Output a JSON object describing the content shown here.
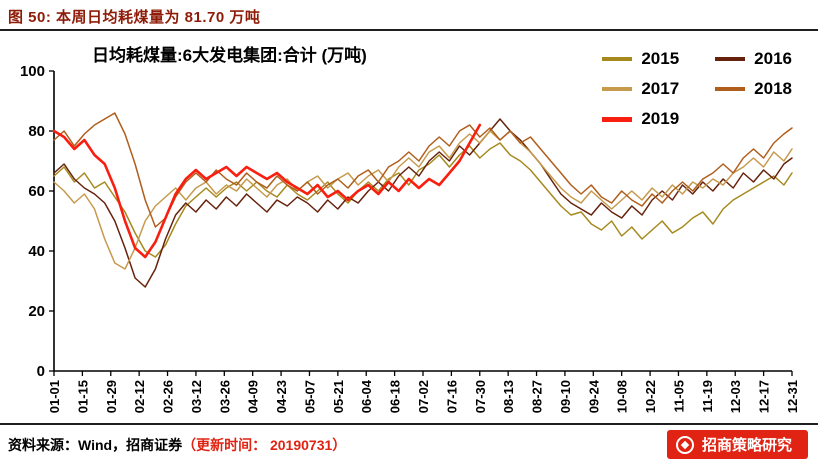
{
  "header": {
    "title": "图 50:  本周日均耗煤量为 81.70 万吨"
  },
  "footer": {
    "source_label": "资料来源：Wind，招商证券",
    "update_label": "（更新时间： 20190731）",
    "stamp_text": "招商策略研究"
  },
  "chart_data": {
    "type": "line",
    "title": "日均耗煤量:6大发电集团:合计 (万吨)",
    "xlabel": "",
    "ylabel": "",
    "ylim": [
      0,
      100
    ],
    "yticks": [
      0,
      20,
      40,
      60,
      80,
      100
    ],
    "grid": false,
    "legend_position": "top-right",
    "x_tick_labels": [
      "01-01",
      "01-15",
      "01-29",
      "02-12",
      "02-26",
      "03-12",
      "03-26",
      "04-09",
      "04-23",
      "05-07",
      "05-21",
      "06-04",
      "06-18",
      "07-02",
      "07-16",
      "07-30",
      "08-13",
      "08-27",
      "09-10",
      "09-24",
      "10-08",
      "10-22",
      "11-05",
      "11-19",
      "12-03",
      "12-17",
      "12-31"
    ],
    "x_tick_step_days": 14,
    "x_total_days": 364,
    "sample_step_days": 5,
    "series": [
      {
        "name": "2015",
        "color": "#A6891D",
        "emphasis": false,
        "values": [
          65,
          68,
          63,
          66,
          61,
          63,
          58,
          53,
          46,
          40,
          38,
          42,
          49,
          55,
          58,
          61,
          58,
          61,
          63,
          60,
          63,
          60,
          58,
          62,
          59,
          57,
          60,
          63,
          59,
          56,
          60,
          63,
          60,
          64,
          66,
          62,
          67,
          69,
          72,
          68,
          72,
          75,
          71,
          74,
          76,
          72,
          70,
          67,
          63,
          59,
          55,
          52,
          53,
          49,
          47,
          50,
          45,
          48,
          44,
          47,
          50,
          46,
          48,
          51,
          53,
          49,
          54,
          57,
          59,
          61,
          63,
          65,
          62,
          66
        ]
      },
      {
        "name": "2016",
        "color": "#66220C",
        "emphasis": false,
        "values": [
          66,
          69,
          64,
          61,
          59,
          56,
          50,
          41,
          31,
          28,
          34,
          44,
          52,
          56,
          53,
          57,
          54,
          58,
          55,
          59,
          56,
          53,
          57,
          55,
          58,
          56,
          53,
          57,
          54,
          58,
          56,
          60,
          63,
          60,
          65,
          68,
          65,
          70,
          73,
          70,
          75,
          72,
          76,
          80,
          84,
          80,
          77,
          73,
          69,
          64,
          59,
          56,
          54,
          52,
          56,
          53,
          51,
          55,
          52,
          57,
          60,
          57,
          62,
          59,
          63,
          60,
          64,
          61,
          66,
          63,
          67,
          64,
          69,
          71
        ]
      },
      {
        "name": "2017",
        "color": "#C69A4C",
        "emphasis": false,
        "values": [
          63,
          60,
          56,
          59,
          54,
          44,
          36,
          34,
          41,
          50,
          55,
          58,
          61,
          57,
          61,
          63,
          59,
          62,
          60,
          64,
          61,
          58,
          62,
          64,
          60,
          63,
          65,
          61,
          64,
          66,
          62,
          65,
          67,
          63,
          68,
          71,
          68,
          73,
          75,
          71,
          76,
          79,
          76,
          80,
          77,
          80,
          76,
          73,
          69,
          65,
          61,
          58,
          56,
          60,
          57,
          54,
          57,
          60,
          57,
          61,
          58,
          62,
          59,
          63,
          61,
          64,
          62,
          66,
          68,
          71,
          68,
          73,
          70,
          74
        ]
      },
      {
        "name": "2018",
        "color": "#AF5E1B",
        "emphasis": false,
        "values": [
          77,
          80,
          75,
          79,
          82,
          84,
          86,
          79,
          69,
          57,
          48,
          51,
          58,
          63,
          66,
          63,
          67,
          64,
          62,
          66,
          63,
          61,
          65,
          62,
          60,
          63,
          59,
          62,
          64,
          61,
          65,
          67,
          63,
          68,
          70,
          73,
          70,
          75,
          78,
          75,
          80,
          82,
          78,
          81,
          77,
          80,
          76,
          78,
          74,
          70,
          66,
          62,
          59,
          62,
          58,
          56,
          60,
          57,
          55,
          59,
          56,
          60,
          63,
          60,
          64,
          66,
          69,
          66,
          71,
          74,
          71,
          76,
          79,
          81
        ]
      },
      {
        "name": "2019",
        "color": "#F91F10",
        "emphasis": true,
        "values": [
          80,
          78,
          74,
          77,
          72,
          69,
          61,
          50,
          41,
          38,
          43,
          51,
          59,
          64,
          67,
          64,
          66,
          68,
          65,
          68,
          66,
          64,
          66,
          63,
          61,
          59,
          62,
          58,
          60,
          57,
          60,
          62,
          59,
          63,
          60,
          64,
          61,
          64,
          62,
          66,
          70,
          76,
          82
        ]
      }
    ]
  }
}
